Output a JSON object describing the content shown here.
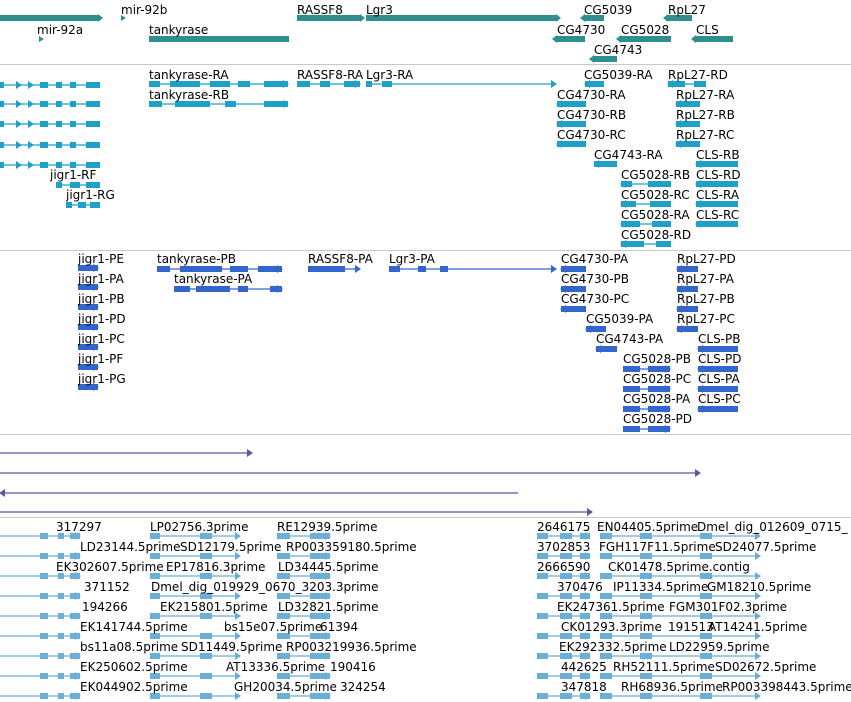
{
  "colors": {
    "gene": "#2f8f8f",
    "transcript": "#1ea0c8",
    "protein": "#3366cc",
    "alignment": "#6a4fa8",
    "est": "#6baed6",
    "divider": "#c8c8c8"
  },
  "tracks": {
    "genes": {
      "labels": {
        "mir92b": "mir-92b",
        "mir92a": "mir-92a",
        "tankyrase": "tankyrase",
        "rassf8": "RASSF8",
        "lgr3": "Lgr3",
        "cg5039": "CG5039",
        "rpl27": "RpL27",
        "cg4730": "CG4730",
        "cg5028": "CG5028",
        "cls": "CLS",
        "cg4743": "CG4743"
      }
    },
    "transcripts": {
      "labels": {
        "tankyrase_ra": "tankyrase-RA",
        "rassf8_ra": "RASSF8-RA",
        "lgr3_ra": "Lgr3-RA",
        "cg5039_ra": "CG5039-RA",
        "rpl27_rd": "RpL27-RD",
        "tankyrase_rb": "tankyrase-RB",
        "cg4730_ra": "CG4730-RA",
        "rpl27_ra": "RpL27-RA",
        "cg4730_rb": "CG4730-RB",
        "rpl27_rb": "RpL27-RB",
        "cg4730_rc": "CG4730-RC",
        "rpl27_rc": "RpL27-RC",
        "cg4743_ra": "CG4743-RA",
        "cls_rb": "CLS-RB",
        "jigr1_rf": "jigr1-RF",
        "cg5028_rb": "CG5028-RB",
        "cls_rd": "CLS-RD",
        "jigr1_rg": "jigr1-RG",
        "cg5028_rc": "CG5028-RC",
        "cls_ra": "CLS-RA",
        "cg5028_ra": "CG5028-RA",
        "cls_rc": "CLS-RC",
        "cg5028_rd": "CG5028-RD"
      }
    },
    "proteins": {
      "labels": {
        "jigr1_pe": "jigr1-PE",
        "tankyrase_pb": "tankyrase-PB",
        "rassf8_pa": "RASSF8-PA",
        "lgr3_pa": "Lgr3-PA",
        "cg4730_pa": "CG4730-PA",
        "rpl27_pd": "RpL27-PD",
        "jigr1_pa": "jigr1-PA",
        "tankyrase_pa": "tankyrase-PA",
        "cg4730_pb": "CG4730-PB",
        "rpl27_pa": "RpL27-PA",
        "jigr1_pb": "jigr1-PB",
        "cg4730_pc": "CG4730-PC",
        "rpl27_pb": "RpL27-PB",
        "jigr1_pd": "jigr1-PD",
        "cg5039_pa": "CG5039-PA",
        "rpl27_pc": "RpL27-PC",
        "jigr1_pc": "jigr1-PC",
        "cg4743_pa": "CG4743-PA",
        "cls_pb": "CLS-PB",
        "jigr1_pf": "jigr1-PF",
        "cg5028_pb": "CG5028-PB",
        "cls_pd": "CLS-PD",
        "jigr1_pg": "jigr1-PG",
        "cg5028_pc": "CG5028-PC",
        "cls_pa": "CLS-PA",
        "cg5028_pa": "CG5028-PA",
        "cls_pc": "CLS-PC",
        "cg5028_pd": "CG5028-PD"
      }
    },
    "ests": {
      "labels": {
        "e1": "317297",
        "e2": "LP02756.3prime",
        "e3": "RE12939.5prime",
        "e4": "2646175",
        "e5": "EN04405.5prime",
        "e6": "Dmel_dig_012609_0715_",
        "e7": "LD23144.5prime",
        "e8": "SD12179.5prime",
        "e9": "RP003359180.5prime",
        "e10": "3702853",
        "e11": "FGH117F11.5prime",
        "e12": "SD24077.5prime",
        "e13": "EK302607.5prime",
        "e14": "EP17816.3prime",
        "e15": "LD34445.5prime",
        "e16": "2666590",
        "e17": "CK01478.5prime.contig",
        "e18": "371152",
        "e19": "Dmel_dig_019929_0670_3203.3prime",
        "e20": "370476",
        "e21": "IP11334.5prime",
        "e22": "GM18210.5prime",
        "e23": "194266",
        "e24": "EK215801.5prime",
        "e25": "LD32821.5prime",
        "e26": "EK247361.5prime",
        "e27": "FGM301F02.3prime",
        "e28": "EK141744.5prime",
        "e29": "bs15e07.5prime",
        "e30": "61394",
        "e31": "CK01293.3prime",
        "e32": "191513",
        "e33": "AT14241.5prime",
        "e34": "bs11a08.5prime",
        "e35": "SD11449.5prime",
        "e36": "RP003219936.5prime",
        "e37": "EK292332.5prime",
        "e38": "LD22959.5prime",
        "e39": "EK250602.5prime",
        "e40": "AT13336.5prime",
        "e41": "190416",
        "e42": "442625",
        "e43": "RH52111.5prime",
        "e44": "SD02672.5prime",
        "e45": "EK044902.5prime",
        "e46": "GH20034.5prime",
        "e47": "324254",
        "e48": "347818",
        "e49": "RH68936.5prime",
        "e50": "RP003398443.5prime"
      }
    }
  }
}
